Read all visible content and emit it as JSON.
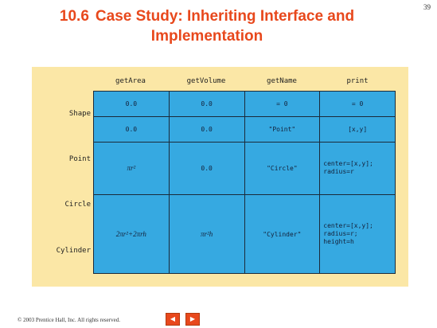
{
  "page_number": "39",
  "title": {
    "number": "10.6",
    "line1": "Case Study: Inheriting Interface and",
    "line2": "Implementation"
  },
  "table": {
    "columns": [
      "getArea",
      "getVolume",
      "getName",
      "print"
    ],
    "rows": [
      {
        "label": "Shape",
        "cells": [
          "0.0",
          "0.0",
          "= 0",
          "= 0"
        ]
      },
      {
        "label": "Point",
        "cells": [
          "0.0",
          "0.0",
          "\"Point\"",
          "[x,y]"
        ]
      },
      {
        "label": "Circle",
        "cells": [
          "πr²",
          "0.0",
          "\"Circle\"",
          "center=[x,y];\nradius=r"
        ]
      },
      {
        "label": "Cylinder",
        "cells": [
          "2πr²+2πrh",
          "πr²h",
          "\"Cylinder\"",
          "center=[x,y];\nradius=r;\nheight=h"
        ]
      }
    ]
  },
  "footer": {
    "copyright": "© 2003 Prentice Hall, Inc. All rights reserved."
  },
  "nav": {
    "prev_icon": "left-arrow-icon",
    "next_icon": "right-arrow-icon"
  }
}
